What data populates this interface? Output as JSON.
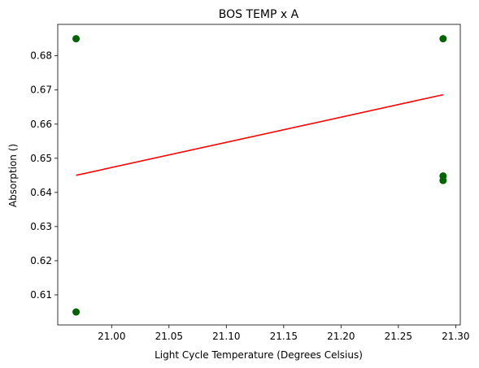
{
  "chart_data": {
    "type": "scatter",
    "title": "BOS TEMP x A",
    "xlabel": "Light Cycle Temperature (Degrees Celsius)",
    "ylabel": "Absorption ()",
    "xlim": [
      20.953,
      21.304
    ],
    "ylim": [
      0.6012,
      0.6892
    ],
    "xticks": [
      21.0,
      21.05,
      21.1,
      21.15,
      21.2,
      21.25,
      21.3
    ],
    "xtick_labels": [
      "21.00",
      "21.05",
      "21.10",
      "21.15",
      "21.20",
      "21.25",
      "21.30"
    ],
    "yticks": [
      0.61,
      0.62,
      0.63,
      0.64,
      0.65,
      0.66,
      0.67,
      0.68
    ],
    "ytick_labels": [
      "0.61",
      "0.62",
      "0.63",
      "0.64",
      "0.65",
      "0.66",
      "0.67",
      "0.68"
    ],
    "grid": false,
    "series": [
      {
        "kind": "points",
        "color": "#006400",
        "points": [
          {
            "x": 20.969,
            "y": 0.685
          },
          {
            "x": 20.969,
            "y": 0.605
          },
          {
            "x": 21.289,
            "y": 0.685
          },
          {
            "x": 21.289,
            "y": 0.6448
          },
          {
            "x": 21.289,
            "y": 0.6435
          }
        ]
      },
      {
        "kind": "fit-line",
        "color": "#ff0000",
        "points": [
          {
            "x": 20.969,
            "y": 0.645
          },
          {
            "x": 21.289,
            "y": 0.6686
          }
        ]
      }
    ]
  }
}
